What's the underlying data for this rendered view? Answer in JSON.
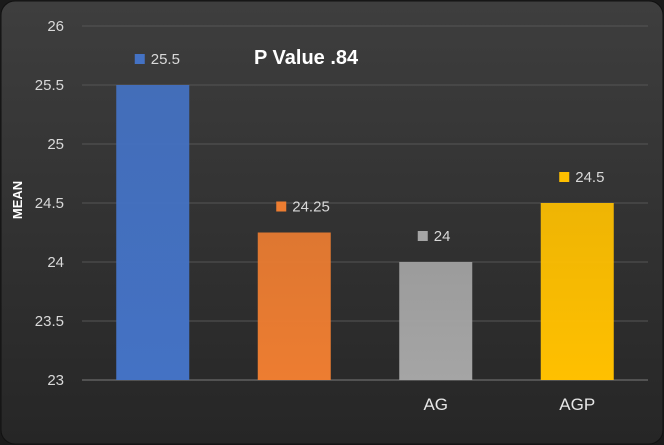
{
  "chart_data": {
    "type": "bar",
    "categories": [
      "",
      "",
      "AG",
      "AGP"
    ],
    "values": [
      25.5,
      24.25,
      24,
      24.5
    ],
    "data_labels": [
      "25.5",
      "24.25",
      "24",
      "24.5"
    ],
    "colors": [
      "#4472c4",
      "#ed7d31",
      "#a5a5a5",
      "#ffc000"
    ],
    "title": "",
    "annotation": "P Value .84",
    "xlabel": "",
    "ylabel": "MEAN",
    "ylim": [
      23,
      26
    ],
    "yticks": [
      "23",
      "23.5",
      "24",
      "24.5",
      "25",
      "25.5",
      "26"
    ],
    "grid": true,
    "legend": "none"
  }
}
